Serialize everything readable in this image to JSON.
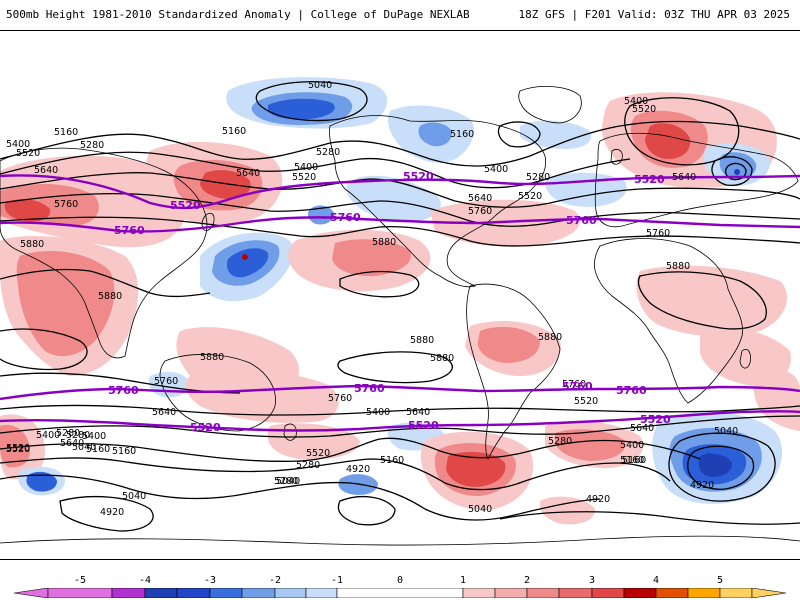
{
  "header": {
    "left": "500mb Height 1981-2010 Standardized Anomaly | College of DuPage NEXLAB",
    "right": "18Z GFS | F201 Valid: 03Z THU APR 03 2025"
  },
  "colors": {
    "anomaly_scale": [
      "#e070e0",
      "#9a20c0",
      "#1f3fb5",
      "#2b5fd8",
      "#6f9de8",
      "#c9def8",
      "#ffffff",
      "#f8c8c8",
      "#f08a8a",
      "#e04848",
      "#b80000",
      "#ffa500",
      "#ffd060"
    ],
    "purple_contour": "#8a00c2",
    "black_contour": "#000000",
    "coastline": "#000000"
  },
  "colorbar": {
    "ticks": [
      "-5",
      "-4",
      "-3",
      "-2",
      "-1",
      "0",
      "1",
      "2",
      "3",
      "4",
      "5"
    ]
  },
  "contour_labels": [
    {
      "id": "c1",
      "text": "5040"
    },
    {
      "id": "c2",
      "text": "5160"
    },
    {
      "id": "c3",
      "text": "5400"
    },
    {
      "id": "c4",
      "text": "5520"
    },
    {
      "id": "c5",
      "text": "5160"
    },
    {
      "id": "c6",
      "text": "5160"
    },
    {
      "id": "c7",
      "text": "5280"
    },
    {
      "id": "c8",
      "text": "5280"
    },
    {
      "id": "c9",
      "text": "5640"
    },
    {
      "id": "c10",
      "text": "5400"
    },
    {
      "id": "c11",
      "text": "5520"
    },
    {
      "id": "c12",
      "text": "5640"
    },
    {
      "id": "c13",
      "text": "5760"
    },
    {
      "id": "c14",
      "text": "5880"
    },
    {
      "id": "c15",
      "text": "5880"
    },
    {
      "id": "c16",
      "text": "5640"
    },
    {
      "id": "c17",
      "text": "5760"
    },
    {
      "id": "c18",
      "text": "5400"
    },
    {
      "id": "c19",
      "text": "5520"
    },
    {
      "id": "c20",
      "text": "5280"
    },
    {
      "id": "c21",
      "text": "5400"
    },
    {
      "id": "c22",
      "text": "5640"
    },
    {
      "id": "c23",
      "text": "5760"
    },
    {
      "id": "c24",
      "text": "5520"
    },
    {
      "id": "c25",
      "text": "5880"
    },
    {
      "id": "c26",
      "text": "5880"
    },
    {
      "id": "c27",
      "text": "5880"
    },
    {
      "id": "c28",
      "text": "5760"
    },
    {
      "id": "c29",
      "text": "5640"
    },
    {
      "id": "c30",
      "text": "5400"
    },
    {
      "id": "c31",
      "text": "5640"
    },
    {
      "id": "c32",
      "text": "5760"
    },
    {
      "id": "c33",
      "text": "5520"
    },
    {
      "id": "c34",
      "text": "5640"
    },
    {
      "id": "c35",
      "text": "5400"
    },
    {
      "id": "c36",
      "text": "5280"
    },
    {
      "id": "c37",
      "text": "5160"
    },
    {
      "id": "c38",
      "text": "5040"
    },
    {
      "id": "c39",
      "text": "4920"
    },
    {
      "id": "c40",
      "text": "5280"
    },
    {
      "id": "c41",
      "text": "5400"
    },
    {
      "id": "c42",
      "text": "5040"
    },
    {
      "id": "c43",
      "text": "5160"
    },
    {
      "id": "c44",
      "text": "5520"
    },
    {
      "id": "c45",
      "text": "5280"
    },
    {
      "id": "c46",
      "text": "5160"
    },
    {
      "id": "c47",
      "text": "4920"
    },
    {
      "id": "c48",
      "text": "5040"
    },
    {
      "id": "c49",
      "text": "5040"
    },
    {
      "id": "c50",
      "text": "4920"
    },
    {
      "id": "c51",
      "text": "5040"
    },
    {
      "id": "c52",
      "text": "5520"
    },
    {
      "id": "c53",
      "text": "5400"
    },
    {
      "id": "c54",
      "text": "5160"
    },
    {
      "id": "c55",
      "text": "5760"
    },
    {
      "id": "c56",
      "text": "5880"
    },
    {
      "id": "c57",
      "text": "5880"
    },
    {
      "id": "c58",
      "text": "5880"
    },
    {
      "id": "c59",
      "text": "5640"
    },
    {
      "id": "c60",
      "text": "5520"
    },
    {
      "id": "c61",
      "text": "5160"
    },
    {
      "id": "c62",
      "text": "5280"
    },
    {
      "id": "c63",
      "text": "4920"
    },
    {
      "id": "c64",
      "text": "5280"
    }
  ],
  "purple_labels": [
    {
      "id": "p1",
      "text": "5520"
    },
    {
      "id": "p2",
      "text": "5520"
    },
    {
      "id": "p3",
      "text": "5520"
    },
    {
      "id": "p4",
      "text": "5760"
    },
    {
      "id": "p5",
      "text": "5760"
    },
    {
      "id": "p6",
      "text": "5760"
    },
    {
      "id": "p7",
      "text": "5760"
    },
    {
      "id": "p8",
      "text": "5760"
    },
    {
      "id": "p9",
      "text": "5760"
    },
    {
      "id": "p10",
      "text": "5760"
    },
    {
      "id": "p11",
      "text": "5520"
    },
    {
      "id": "p12",
      "text": "5520"
    },
    {
      "id": "p13",
      "text": "5520"
    }
  ]
}
